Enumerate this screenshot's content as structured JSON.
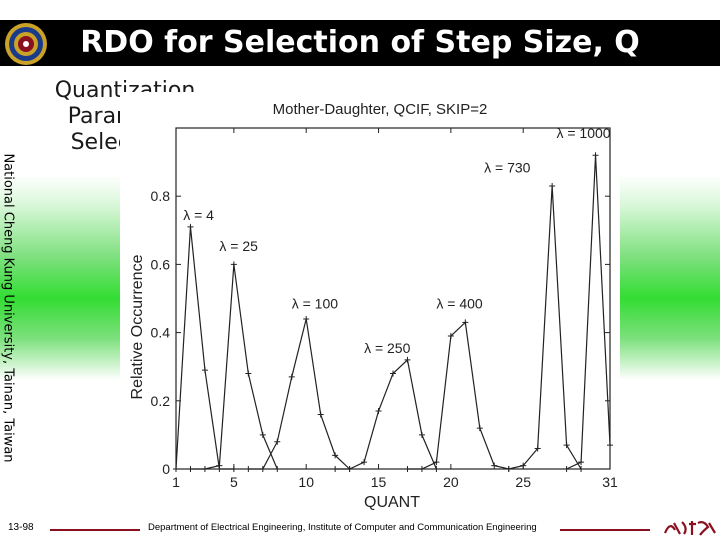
{
  "slide": {
    "title": "RDO for Selection of Step Size, Q",
    "subtitle_line1": "Quantization",
    "subtitle_line2": "Parameter",
    "subtitle_line3": "Selection:",
    "side_text": "National Cheng Kung University, Tainan, Taiwan",
    "page_number": "13-98",
    "department": "Department of Electrical Engineering, Institute of Computer and Communication Engineering"
  },
  "chart_data": {
    "type": "line",
    "title": "Mother-Daughter, QCIF, SKIP=2",
    "xlabel": "QUANT",
    "ylabel": "Relative Occurrence",
    "xlim": [
      1,
      31
    ],
    "ylim": [
      0,
      1
    ],
    "xticks": [
      1,
      5,
      10,
      15,
      20,
      25,
      31
    ],
    "yticks": [
      0,
      0.2,
      0.4,
      0.6,
      0.8
    ],
    "xtick_labels": [
      "1",
      "5",
      "10",
      "15",
      "20",
      "25",
      "31"
    ],
    "ytick_labels": [
      "0",
      "0.2",
      "0.4",
      "0.6",
      "0.8"
    ],
    "grid": false,
    "series": [
      {
        "name": "λ = 4",
        "label_x": 1.5,
        "label_y": 0.73,
        "x": [
          1,
          2,
          3,
          4,
          5
        ],
        "y": [
          0,
          0.71,
          0.29,
          0,
          0
        ]
      },
      {
        "name": "λ = 25",
        "label_x": 4,
        "label_y": 0.64,
        "x": [
          2,
          3,
          4,
          5,
          6,
          7,
          8
        ],
        "y": [
          0,
          0,
          0.01,
          0.6,
          0.28,
          0.1,
          0
        ]
      },
      {
        "name": "λ = 100",
        "label_x": 9,
        "label_y": 0.47,
        "x": [
          6,
          7,
          8,
          9,
          10,
          11,
          12,
          13
        ],
        "y": [
          0,
          0,
          0.08,
          0.27,
          0.44,
          0.16,
          0.04,
          0
        ]
      },
      {
        "name": "λ = 250",
        "label_x": 14,
        "label_y": 0.34,
        "x": [
          12,
          13,
          14,
          15,
          16,
          17,
          18,
          19
        ],
        "y": [
          0,
          0,
          0.02,
          0.17,
          0.28,
          0.32,
          0.1,
          0
        ]
      },
      {
        "name": "λ = 400",
        "label_x": 19,
        "label_y": 0.47,
        "x": [
          17,
          18,
          19,
          20,
          21,
          22,
          23,
          24
        ],
        "y": [
          0,
          0,
          0.02,
          0.39,
          0.43,
          0.12,
          0.01,
          0
        ]
      },
      {
        "name": "λ = 730",
        "label_x": 22.3,
        "label_y": 0.87,
        "x": [
          24,
          25,
          26,
          27,
          28,
          29
        ],
        "y": [
          0,
          0.01,
          0.06,
          0.83,
          0.07,
          0
        ]
      },
      {
        "name": "λ = 1000",
        "label_x": 27.3,
        "label_y": 0.97,
        "x": [
          28,
          29,
          30,
          31
        ],
        "y": [
          0,
          0.02,
          0.92,
          0.07
        ]
      }
    ]
  }
}
